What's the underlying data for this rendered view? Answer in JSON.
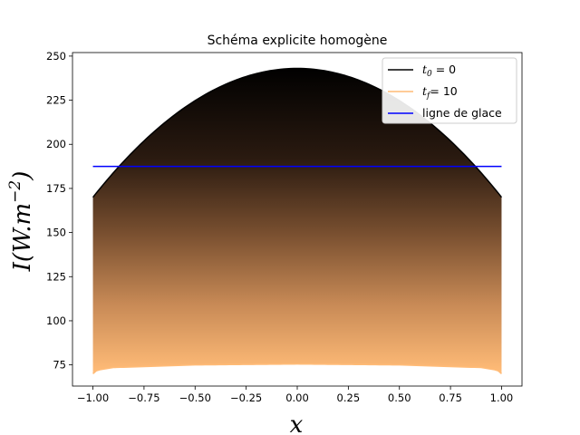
{
  "chart_data": {
    "type": "area",
    "title": "Schéma explicite homogène",
    "xlabel": "x",
    "ylabel": {
      "base": "I(W.m",
      "exp": "−2",
      "close": ")"
    },
    "xlim": [
      -1.1,
      1.1
    ],
    "ylim": [
      63,
      252
    ],
    "xticks": [
      -1.0,
      -0.75,
      -0.5,
      -0.25,
      0.0,
      0.25,
      0.5,
      0.75,
      1.0
    ],
    "xtick_labels": [
      "−1.00",
      "−0.75",
      "−0.50",
      "−0.25",
      "0.00",
      "0.25",
      "0.50",
      "0.75",
      "1.00"
    ],
    "yticks": [
      75,
      100,
      125,
      150,
      175,
      200,
      225,
      250
    ],
    "ytick_labels": [
      "75",
      "100",
      "125",
      "150",
      "175",
      "200",
      "225",
      "250"
    ],
    "initial_curve": {
      "x": [
        -1.0,
        -0.5,
        0.0,
        0.5,
        1.0
      ],
      "y": [
        170,
        227,
        243,
        227,
        170
      ]
    },
    "final_curve": {
      "x": [
        -1.0,
        -0.98,
        -0.9,
        -0.5,
        0.0,
        0.5,
        0.9,
        0.98,
        1.0
      ],
      "y": [
        70,
        72,
        73.5,
        75,
        75.5,
        75,
        73.5,
        72,
        70
      ]
    },
    "ice_line": {
      "y": 187.5,
      "x": [
        -1.0,
        1.0
      ]
    },
    "colors": {
      "initial": "#000000",
      "final": "#ffbb77",
      "ice": "#0000ff"
    },
    "legend": {
      "position": "top-right",
      "entries": [
        {
          "label": "t",
          "sub": "0",
          "value": " = 0",
          "color": "#000000"
        },
        {
          "label": "t",
          "sub": "f",
          "value": "= 10",
          "color": "#ffbb77"
        },
        {
          "label": "ligne de glace",
          "sub": "",
          "value": "",
          "color": "#0000ff"
        }
      ]
    }
  }
}
